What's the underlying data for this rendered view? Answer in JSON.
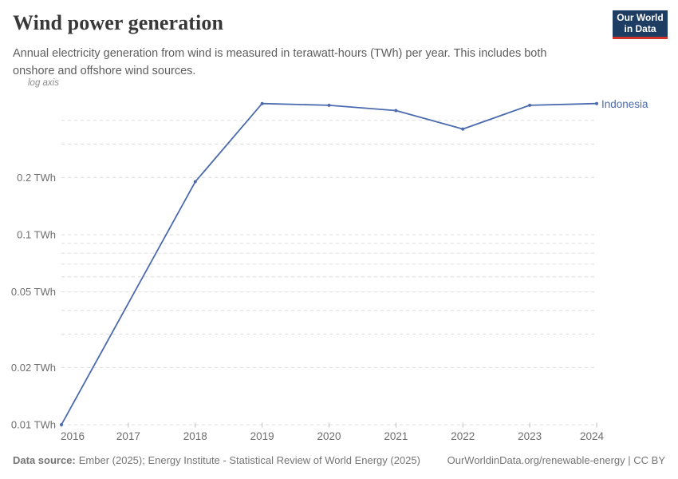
{
  "header": {
    "title": "Wind power generation",
    "subtitle": "Annual electricity generation from wind is measured in terawatt-hours (TWh) per year. This includes both onshore and offshore wind sources.",
    "logo": {
      "line1": "Our World",
      "line2": "in Data"
    }
  },
  "chart_data": {
    "type": "line",
    "title": "Wind power generation",
    "unit": "TWh",
    "axis_note": "log axis",
    "y_scale": "log",
    "ylim": [
      0.01,
      0.5
    ],
    "grid": true,
    "legend_position": "end-of-line",
    "x": [
      2016,
      2017,
      2018,
      2019,
      2020,
      2021,
      2022,
      2023,
      2024
    ],
    "x_labels": [
      "2016",
      "2017",
      "2018",
      "2019",
      "2020",
      "2021",
      "2022",
      "2023",
      "2024"
    ],
    "series": [
      {
        "name": "Indonesia",
        "values": [
          0.01,
          null,
          0.19,
          0.49,
          0.48,
          0.45,
          0.36,
          0.48,
          0.49
        ],
        "note": "2017 value missing/zero; line connects 2016 directly to 2018 on log scale"
      }
    ],
    "y_ticks": [
      {
        "value": 0.2,
        "label": "0.2 TWh"
      },
      {
        "value": 0.1,
        "label": "0.1 TWh"
      },
      {
        "value": 0.05,
        "label": "0.05 TWh"
      },
      {
        "value": 0.02,
        "label": "0.02 TWh"
      },
      {
        "value": 0.01,
        "label": "0.01 TWh"
      }
    ],
    "y_gridlines": [
      0.4,
      0.3,
      0.2,
      0.1,
      0.09,
      0.08,
      0.07,
      0.06,
      0.05,
      0.04,
      0.03,
      0.02,
      0.01
    ]
  },
  "footer": {
    "data_source_label": "Data source:",
    "data_source_text": "Ember (2025); Energy Institute - Statistical Review of World Energy (2025)",
    "attribution": "OurWorldinData.org/renewable-energy | CC BY"
  },
  "colors": {
    "line": "#4c6bae",
    "navy": "#1d3d63",
    "red": "#d0342c",
    "grid": "#dcdcdc",
    "axis_text": "#6e6e6e",
    "title_text": "#383838",
    "subtitle_text": "#5e5e5e",
    "footer_text": "#757575"
  }
}
